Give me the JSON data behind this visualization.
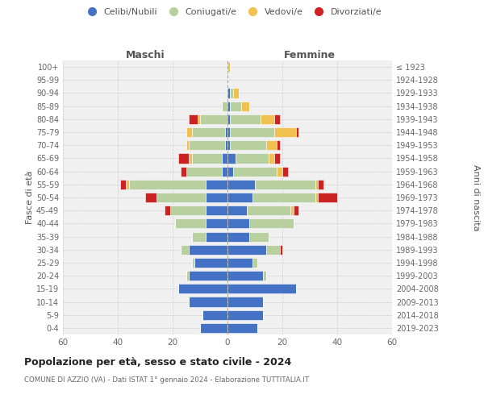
{
  "age_groups": [
    "100+",
    "95-99",
    "90-94",
    "85-89",
    "80-84",
    "75-79",
    "70-74",
    "65-69",
    "60-64",
    "55-59",
    "50-54",
    "45-49",
    "40-44",
    "35-39",
    "30-34",
    "25-29",
    "20-24",
    "15-19",
    "10-14",
    "5-9",
    "0-4"
  ],
  "birth_years": [
    "≤ 1923",
    "1924-1928",
    "1929-1933",
    "1934-1938",
    "1939-1943",
    "1944-1948",
    "1949-1953",
    "1954-1958",
    "1959-1963",
    "1964-1968",
    "1969-1973",
    "1974-1978",
    "1979-1983",
    "1984-1988",
    "1989-1993",
    "1994-1998",
    "1999-2003",
    "2004-2008",
    "2009-2013",
    "2014-2018",
    "2019-2023"
  ],
  "colors": {
    "celibi": "#4472c4",
    "coniugati": "#b8cfa0",
    "vedovi": "#f0c050",
    "divorziati": "#cc2222"
  },
  "males": {
    "celibi": [
      0,
      0,
      0,
      0,
      0,
      1,
      1,
      2,
      2,
      8,
      8,
      8,
      8,
      8,
      14,
      12,
      14,
      18,
      14,
      9,
      10
    ],
    "coniugati": [
      0,
      0,
      0,
      2,
      10,
      12,
      13,
      11,
      13,
      28,
      18,
      13,
      11,
      5,
      3,
      1,
      1,
      0,
      0,
      0,
      0
    ],
    "vedovi": [
      0,
      0,
      0,
      0,
      1,
      2,
      1,
      1,
      0,
      1,
      0,
      0,
      0,
      0,
      0,
      0,
      0,
      0,
      0,
      0,
      0
    ],
    "divorziati": [
      0,
      0,
      0,
      0,
      3,
      0,
      0,
      4,
      2,
      2,
      4,
      2,
      0,
      0,
      0,
      0,
      0,
      0,
      0,
      0,
      0
    ]
  },
  "females": {
    "celibi": [
      0,
      0,
      1,
      1,
      1,
      1,
      1,
      3,
      2,
      10,
      9,
      7,
      8,
      8,
      14,
      9,
      13,
      25,
      13,
      13,
      11
    ],
    "coniugati": [
      0,
      0,
      1,
      4,
      11,
      16,
      13,
      12,
      16,
      22,
      23,
      16,
      16,
      7,
      5,
      2,
      1,
      0,
      0,
      0,
      0
    ],
    "vedovi": [
      1,
      0,
      2,
      3,
      5,
      8,
      4,
      2,
      2,
      1,
      1,
      1,
      0,
      0,
      0,
      0,
      0,
      0,
      0,
      0,
      0
    ],
    "divorziati": [
      0,
      0,
      0,
      0,
      2,
      1,
      1,
      2,
      2,
      2,
      7,
      2,
      0,
      0,
      1,
      0,
      0,
      0,
      0,
      0,
      0
    ]
  },
  "xlim": 60,
  "title_main": "Popolazione per età, sesso e stato civile - 2024",
  "title_sub": "COMUNE DI AZZIO (VA) - Dati ISTAT 1° gennaio 2024 - Elaborazione TUTTITALIA.IT",
  "ylabel_left": "Fasce di età",
  "ylabel_right": "Anni di nascita",
  "xlabel_left": "Maschi",
  "xlabel_right": "Femmine",
  "legend_labels": [
    "Celibi/Nubili",
    "Coniugati/e",
    "Vedovi/e",
    "Divorziati/e"
  ],
  "bg_color": "#f0f0f0",
  "grid_color": "#cccccc"
}
